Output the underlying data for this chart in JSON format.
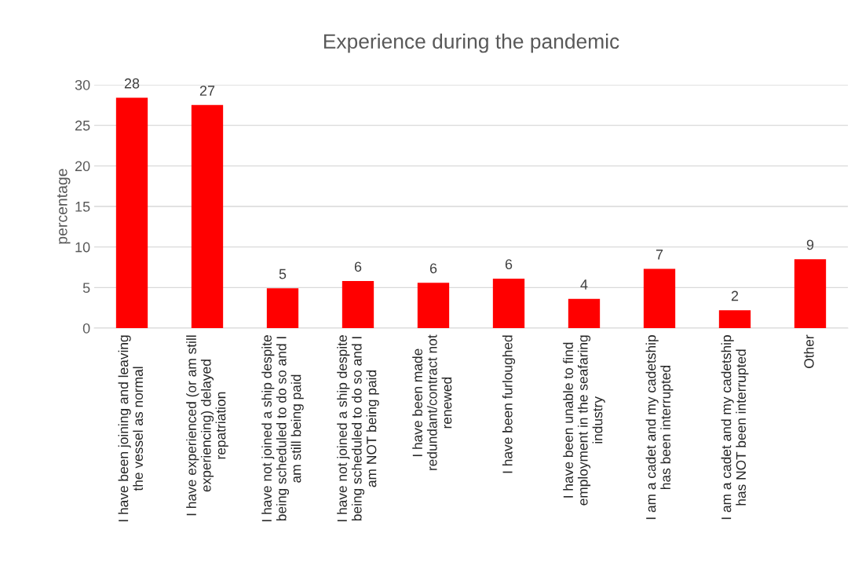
{
  "chart_data": {
    "type": "bar",
    "title": "Experience during the pandemic",
    "ylabel": "percentage",
    "categories": [
      "I have been joining and leaving\nthe vessel as normal",
      "I have experienced (or am still\nexperiencing) delayed\nrepatriation",
      "I have not joined a ship despite\nbeing scheduled to do so and I\nam still being paid",
      "I have not joined a ship despite\nbeing scheduled to do so and I\nam NOT being paid",
      "I have been made\nredundant/contract not\nrenewed",
      "I have been furloughed",
      "I have been unable to find\nemployment in the seafaring\nindustry",
      "I am a cadet and my cadetship\nhas been interrupted",
      "I am a cadet and my cadetship\nhas NOT been interrupted",
      "Other"
    ],
    "values": [
      28.4,
      27.5,
      4.9,
      5.8,
      5.6,
      6.1,
      3.6,
      7.3,
      2.2,
      8.5
    ],
    "value_labels": [
      "28",
      "27",
      "5",
      "6",
      "6",
      "6",
      "4",
      "7",
      "2",
      "9"
    ],
    "color": "#ff0000",
    "ylim": [
      0,
      30
    ],
    "yticks": [
      0,
      5,
      10,
      15,
      20,
      25,
      30
    ],
    "grid": "y"
  }
}
